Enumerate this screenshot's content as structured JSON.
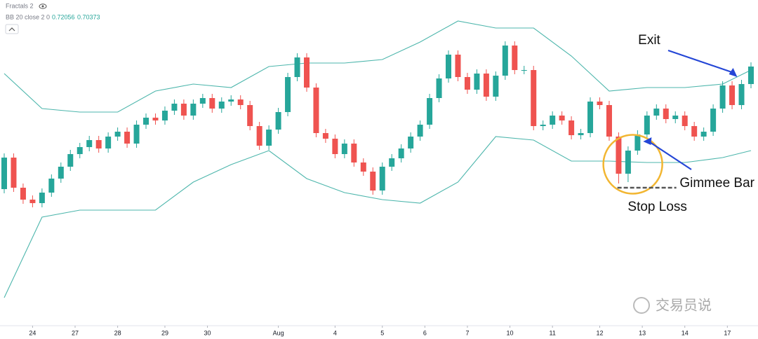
{
  "chart_data": {
    "type": "candlestick",
    "indicator_title": "Fractals 2",
    "bb_title": "BB 20 close 2 0",
    "bb_values": [
      "0.72056",
      "0.70373"
    ],
    "up_color": "#26a69a",
    "down_color": "#ef5350",
    "band_color": "#4db6ac",
    "ylim": [
      0.6865,
      0.733
    ],
    "xlim": [
      0,
      79
    ],
    "xticks": [
      {
        "value": 3,
        "label": "24"
      },
      {
        "value": 7.5,
        "label": "27"
      },
      {
        "value": 12,
        "label": "28"
      },
      {
        "value": 17,
        "label": "29"
      },
      {
        "value": 21.5,
        "label": "30"
      },
      {
        "value": 29,
        "label": "Aug"
      },
      {
        "value": 35,
        "label": "4"
      },
      {
        "value": 40,
        "label": "5"
      },
      {
        "value": 44.5,
        "label": "6"
      },
      {
        "value": 49,
        "label": "7"
      },
      {
        "value": 53.5,
        "label": "10"
      },
      {
        "value": 58,
        "label": "11"
      },
      {
        "value": 63,
        "label": "12"
      },
      {
        "value": 67.5,
        "label": "13"
      },
      {
        "value": 72,
        "label": "14"
      },
      {
        "value": 76.5,
        "label": "17"
      }
    ],
    "open": [
      0.706,
      0.7105,
      0.7062,
      0.7045,
      0.704,
      0.7055,
      0.7075,
      0.7092,
      0.711,
      0.712,
      0.713,
      0.7118,
      0.7135,
      0.7142,
      0.7125,
      0.7152,
      0.7162,
      0.7158,
      0.7172,
      0.7182,
      0.7165,
      0.7182,
      0.719,
      0.7175,
      0.7185,
      0.7188,
      0.718,
      0.715,
      0.7122,
      0.7145,
      0.717,
      0.722,
      0.7248,
      0.7205,
      0.714,
      0.7132,
      0.711,
      0.7125,
      0.7098,
      0.7085,
      0.7058,
      0.7092,
      0.7104,
      0.7118,
      0.7135,
      0.7152,
      0.719,
      0.7218,
      0.7252,
      0.722,
      0.7202,
      0.7225,
      0.7192,
      0.7222,
      0.7265,
      0.723,
      0.723,
      0.715,
      0.7152,
      0.7165,
      0.7158,
      0.7137,
      0.714,
      0.7185,
      0.718,
      0.7135,
      0.7082,
      0.7115,
      0.7138,
      0.7165,
      0.7175,
      0.716,
      0.7165,
      0.715,
      0.7135,
      0.7142,
      0.7175,
      0.7208,
      0.718,
      0.721
    ],
    "high": [
      0.7111,
      0.7111,
      0.7068,
      0.7051,
      0.7061,
      0.7081,
      0.7098,
      0.7116,
      0.7126,
      0.7136,
      0.7136,
      0.7141,
      0.7148,
      0.7148,
      0.7158,
      0.7168,
      0.7168,
      0.7178,
      0.7188,
      0.7188,
      0.7188,
      0.7196,
      0.7196,
      0.7191,
      0.7194,
      0.7194,
      0.7186,
      0.7156,
      0.7151,
      0.7176,
      0.7226,
      0.7254,
      0.7254,
      0.7211,
      0.7146,
      0.7138,
      0.7131,
      0.7131,
      0.7104,
      0.7091,
      0.7098,
      0.711,
      0.7124,
      0.7141,
      0.7158,
      0.7196,
      0.7224,
      0.7258,
      0.7258,
      0.7226,
      0.7231,
      0.7231,
      0.7228,
      0.7271,
      0.7271,
      0.7236,
      0.7236,
      0.7158,
      0.7171,
      0.7171,
      0.7164,
      0.7146,
      0.7191,
      0.7191,
      0.7186,
      0.7141,
      0.7121,
      0.7144,
      0.7171,
      0.7181,
      0.7181,
      0.7171,
      0.7171,
      0.7156,
      0.7148,
      0.7181,
      0.7214,
      0.7214,
      0.7216,
      0.7241
    ],
    "low": [
      0.7054,
      0.7056,
      0.7039,
      0.7034,
      0.7034,
      0.7049,
      0.7069,
      0.7086,
      0.7104,
      0.7114,
      0.7112,
      0.7112,
      0.7129,
      0.7119,
      0.7119,
      0.7146,
      0.7152,
      0.7152,
      0.7166,
      0.7159,
      0.7159,
      0.7176,
      0.7169,
      0.7169,
      0.7179,
      0.7174,
      0.7144,
      0.7116,
      0.7116,
      0.7139,
      0.7164,
      0.7214,
      0.7199,
      0.7134,
      0.7126,
      0.7104,
      0.7104,
      0.7092,
      0.7079,
      0.7052,
      0.7052,
      0.7086,
      0.7098,
      0.7112,
      0.7129,
      0.7146,
      0.7184,
      0.7212,
      0.7214,
      0.7196,
      0.7196,
      0.7186,
      0.7186,
      0.7216,
      0.7224,
      0.7224,
      0.7144,
      0.7144,
      0.7146,
      0.7152,
      0.7131,
      0.7131,
      0.7134,
      0.7174,
      0.7129,
      0.7068,
      0.707,
      0.7109,
      0.7132,
      0.7159,
      0.7154,
      0.7154,
      0.7144,
      0.7129,
      0.7129,
      0.7136,
      0.7169,
      0.7174,
      0.7174,
      0.7204
    ],
    "close": [
      0.7105,
      0.7062,
      0.7045,
      0.704,
      0.7055,
      0.7075,
      0.7092,
      0.711,
      0.712,
      0.713,
      0.7118,
      0.7135,
      0.7142,
      0.7125,
      0.7152,
      0.7162,
      0.7158,
      0.7172,
      0.7182,
      0.7165,
      0.7182,
      0.719,
      0.7175,
      0.7185,
      0.7188,
      0.718,
      0.715,
      0.7122,
      0.7145,
      0.717,
      0.722,
      0.7248,
      0.7205,
      0.714,
      0.7132,
      0.711,
      0.7125,
      0.7098,
      0.7085,
      0.7058,
      0.7092,
      0.7104,
      0.7118,
      0.7135,
      0.7152,
      0.719,
      0.7218,
      0.7252,
      0.722,
      0.7202,
      0.7225,
      0.7192,
      0.7222,
      0.7265,
      0.723,
      0.723,
      0.715,
      0.7152,
      0.7165,
      0.7158,
      0.7137,
      0.714,
      0.7185,
      0.718,
      0.7135,
      0.7082,
      0.7115,
      0.7138,
      0.7165,
      0.7175,
      0.716,
      0.7165,
      0.715,
      0.7135,
      0.7142,
      0.7175,
      0.7208,
      0.718,
      0.721,
      0.7235
    ],
    "bands": {
      "x": [
        0,
        4,
        8,
        12,
        16,
        20,
        24,
        28,
        32,
        36,
        40,
        44,
        48,
        52,
        56,
        60,
        64,
        68,
        72,
        76,
        79
      ],
      "upper": [
        0.7225,
        0.7175,
        0.717,
        0.717,
        0.72,
        0.721,
        0.7205,
        0.7235,
        0.724,
        0.724,
        0.7245,
        0.727,
        0.73,
        0.729,
        0.729,
        0.725,
        0.72,
        0.7205,
        0.7205,
        0.721,
        0.723
      ],
      "lower": [
        0.6905,
        0.702,
        0.703,
        0.703,
        0.703,
        0.707,
        0.7095,
        0.7115,
        0.7075,
        0.7055,
        0.7045,
        0.704,
        0.707,
        0.7135,
        0.713,
        0.71,
        0.71,
        0.7098,
        0.7098,
        0.7105,
        0.7115
      ]
    },
    "annotations": {
      "exit": "Exit",
      "gimmee": "Gimmee Bar",
      "stop": "Stop Loss"
    },
    "watermark": "交易员说"
  }
}
